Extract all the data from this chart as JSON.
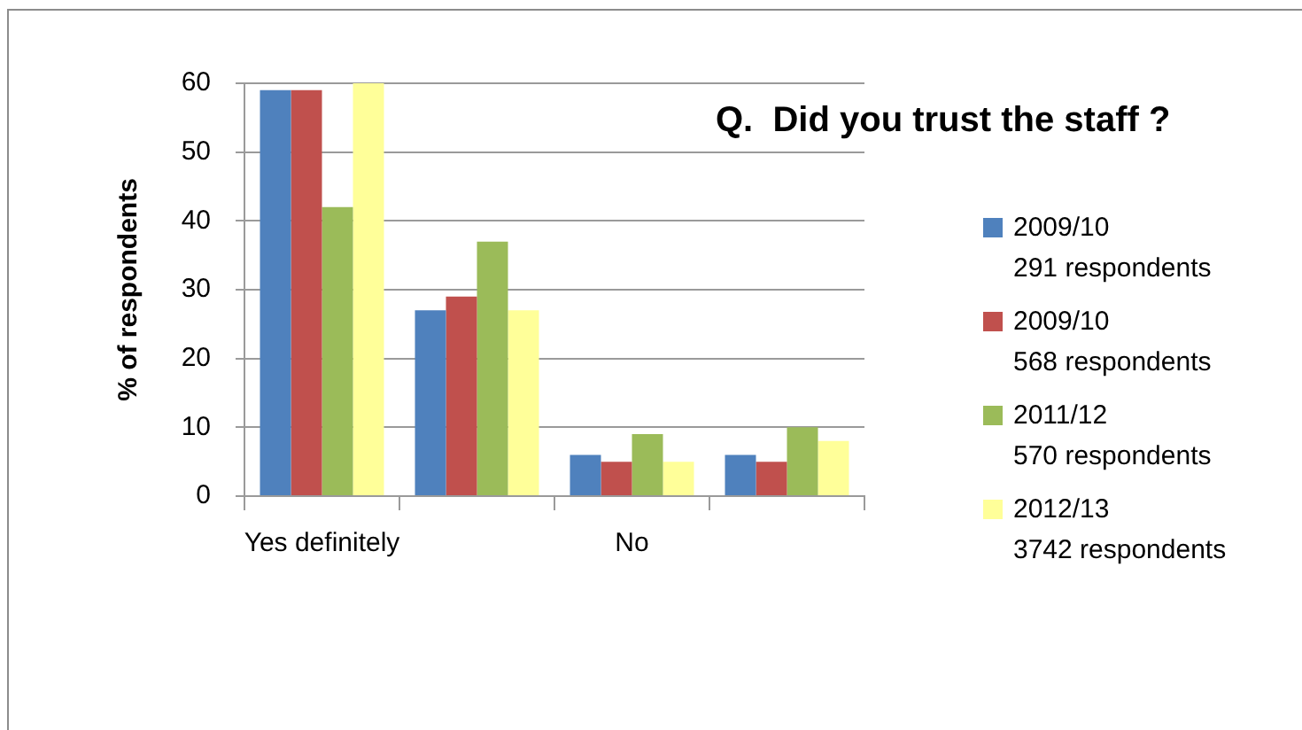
{
  "chart_data": {
    "type": "bar",
    "title": "Q.  Did you trust the staff ?",
    "ylabel": "% of respondents",
    "categories": [
      "Yes definitely",
      null,
      "No",
      null
    ],
    "series": [
      {
        "name": "2009/10\n291 respondents",
        "color": "#4f81bd",
        "values": [
          59,
          27,
          6,
          6
        ]
      },
      {
        "name": "2009/10\n568 respondents",
        "color": "#c0504d",
        "values": [
          59,
          29,
          5,
          5
        ]
      },
      {
        "name": "2011/12\n570 respondents",
        "color": "#9bbb59",
        "values": [
          42,
          37,
          9,
          10
        ]
      },
      {
        "name": "2012/13\n3742 respondents",
        "color": "#ffff99",
        "values": [
          60,
          27,
          5,
          8
        ]
      }
    ],
    "ylim": [
      0,
      60
    ],
    "yticks": [
      0,
      10,
      20,
      30,
      40,
      50,
      60
    ],
    "grid": "y",
    "legend": "right"
  }
}
